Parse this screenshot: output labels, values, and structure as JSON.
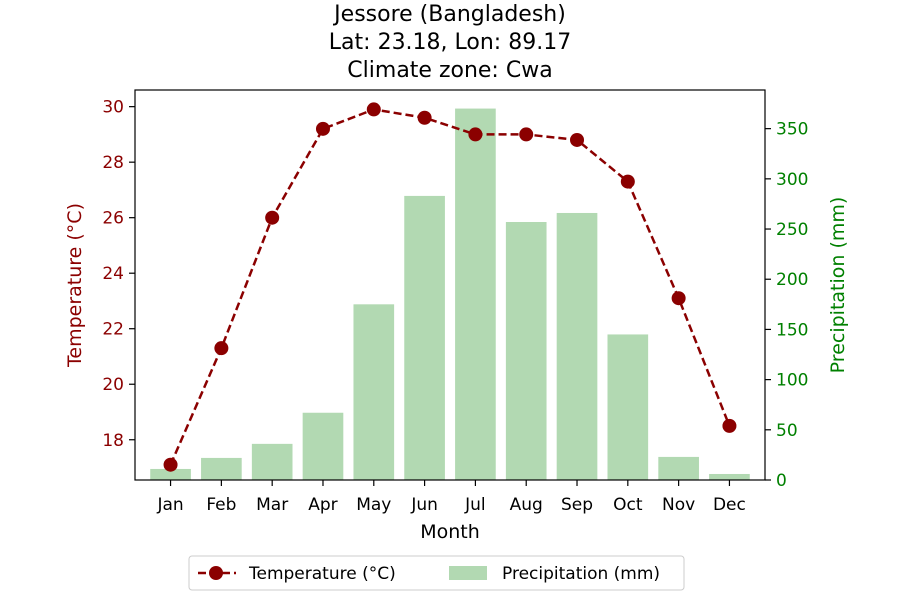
{
  "chart_data": {
    "type": "bar",
    "title_lines": [
      "Jessore (Bangladesh)",
      "Lat: 23.18, Lon: 89.17",
      "Climate zone: Cwa"
    ],
    "xlabel": "Month",
    "ylabel_left": "Temperature (°C)",
    "ylabel_right": "Precipitation (mm)",
    "categories": [
      "Jan",
      "Feb",
      "Mar",
      "Apr",
      "May",
      "Jun",
      "Jul",
      "Aug",
      "Sep",
      "Oct",
      "Nov",
      "Dec"
    ],
    "series": [
      {
        "name": "Temperature (°C)",
        "type": "line",
        "axis": "left",
        "color": "#8b0000",
        "values": [
          17.1,
          21.3,
          26.0,
          29.2,
          29.9,
          29.6,
          29.0,
          29.0,
          28.8,
          27.3,
          23.1,
          18.5
        ]
      },
      {
        "name": "Precipitation (mm)",
        "type": "bar",
        "axis": "right",
        "color": "#b2d9b2",
        "values": [
          11,
          22,
          36,
          67,
          175,
          283,
          370,
          257,
          266,
          145,
          23,
          6
        ]
      }
    ],
    "ylim_left": [
      16.55,
      30.6
    ],
    "yticks_left": [
      18,
      20,
      22,
      24,
      26,
      28,
      30
    ],
    "ylim_right": [
      0,
      388.5
    ],
    "yticks_right": [
      0,
      50,
      100,
      150,
      200,
      250,
      300,
      350
    ],
    "left_axis_color": "#8b0000",
    "right_axis_color": "#008000",
    "grid": false,
    "legend_position": "bottom-center"
  }
}
